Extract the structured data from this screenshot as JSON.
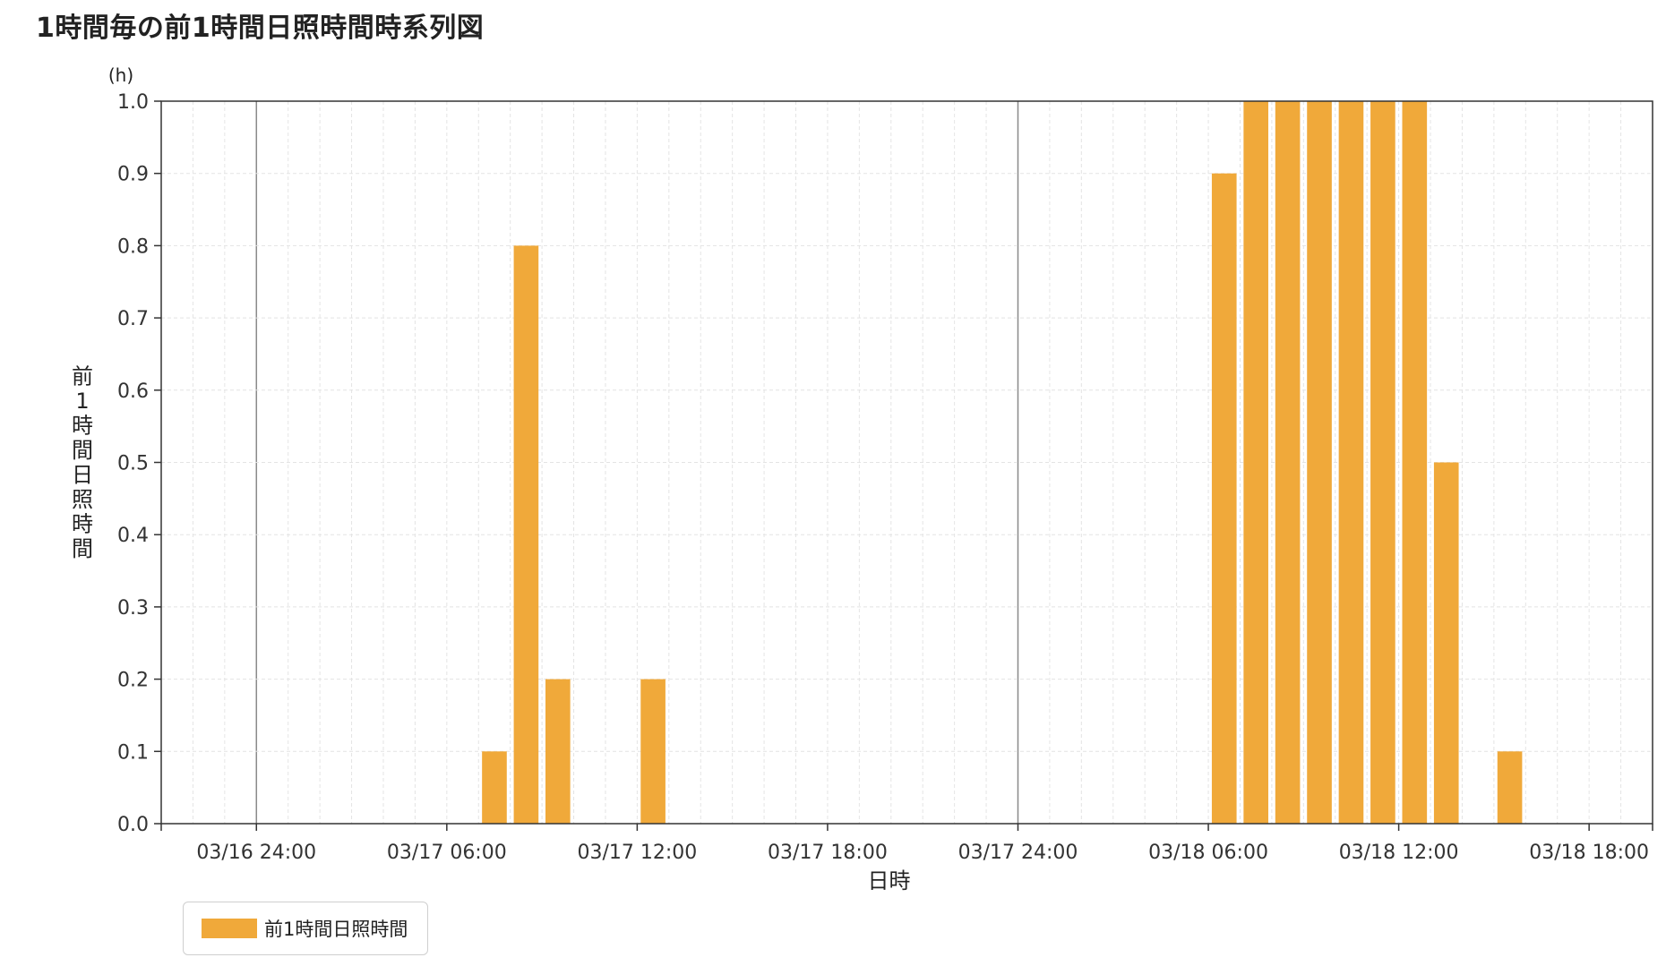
{
  "title": "1時間毎の前1時間日照時間時系列図",
  "chart_data": {
    "type": "bar",
    "ylabel": "前1時間日照時間",
    "yunit": "(h)",
    "xlabel": "日時",
    "ylim": [
      0,
      1.0
    ],
    "yticks": [
      "0.0",
      "0.1",
      "0.2",
      "0.3",
      "0.4",
      "0.5",
      "0.6",
      "0.7",
      "0.8",
      "0.9",
      "1.0"
    ],
    "xticks": [
      "03/16 24:00",
      "03/17 06:00",
      "03/17 12:00",
      "03/17 18:00",
      "03/17 24:00",
      "03/18 06:00",
      "03/18 12:00",
      "03/18 18:00"
    ],
    "xrange_hours": [
      -3,
      44
    ],
    "grid": true,
    "legend_position": "bottom-left",
    "series": [
      {
        "name": "前1時間日照時間",
        "color": "#f0a93a",
        "points": [
          {
            "x": "03/17 08:00",
            "y": 0.1
          },
          {
            "x": "03/17 09:00",
            "y": 0.8
          },
          {
            "x": "03/17 10:00",
            "y": 0.2
          },
          {
            "x": "03/17 13:00",
            "y": 0.2
          },
          {
            "x": "03/18 07:00",
            "y": 0.9
          },
          {
            "x": "03/18 08:00",
            "y": 1.0
          },
          {
            "x": "03/18 09:00",
            "y": 1.0
          },
          {
            "x": "03/18 10:00",
            "y": 1.0
          },
          {
            "x": "03/18 11:00",
            "y": 1.0
          },
          {
            "x": "03/18 12:00",
            "y": 1.0
          },
          {
            "x": "03/18 13:00",
            "y": 1.0
          },
          {
            "x": "03/18 14:00",
            "y": 0.5
          },
          {
            "x": "03/18 16:00",
            "y": 0.1
          }
        ]
      }
    ]
  },
  "legend": {
    "label": "前1時間日照時間",
    "color": "#f0a93a"
  }
}
